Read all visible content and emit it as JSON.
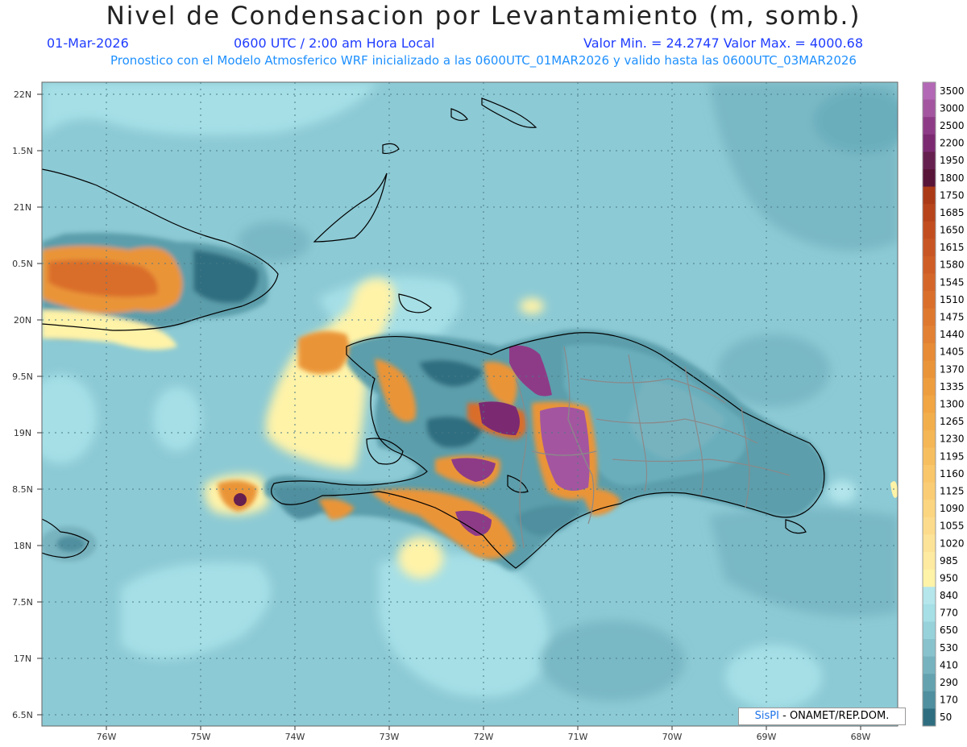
{
  "title": "Nivel de Condensacion por Levantamiento (m, somb.)",
  "subtitle": {
    "date": "01-Mar-2026",
    "time": "0600 UTC / 2:00 am Hora Local",
    "minmax": "Valor Min. = 24.2747   Valor Max. = 4000.68"
  },
  "description": "Pronostico con el Modelo Atmosferico WRF inicializado a las 0600UTC_01MAR2026 y valido hasta las  0600UTC_03MAR2026",
  "lat_labels": [
    "22N",
    "1.5N",
    "21N",
    "0.5N",
    "20N",
    "9.5N",
    "19N",
    "8.5N",
    "18N",
    "7.5N",
    "17N",
    "6.5N"
  ],
  "lon_labels": [
    "76W",
    "75W",
    "74W",
    "73W",
    "72W",
    "71W",
    "70W",
    "69W",
    "68W"
  ],
  "colorbar": [
    {
      "label": "3500",
      "color": "#b368b5"
    },
    {
      "label": "3000",
      "color": "#a3569f"
    },
    {
      "label": "2500",
      "color": "#8e3b87"
    },
    {
      "label": "2200",
      "color": "#7b2a72"
    },
    {
      "label": "1950",
      "color": "#66204f"
    },
    {
      "label": "1800",
      "color": "#581538"
    },
    {
      "label": "1750",
      "color": "#ab3a17"
    },
    {
      "label": "1685",
      "color": "#b7441b"
    },
    {
      "label": "1650",
      "color": "#c24e1f"
    },
    {
      "label": "1615",
      "color": "#c85624"
    },
    {
      "label": "1580",
      "color": "#cf5d26"
    },
    {
      "label": "1545",
      "color": "#d4662a"
    },
    {
      "label": "1510",
      "color": "#da6f2c"
    },
    {
      "label": "1475",
      "color": "#df782f"
    },
    {
      "label": "1440",
      "color": "#e28133"
    },
    {
      "label": "1405",
      "color": "#e78b36"
    },
    {
      "label": "1370",
      "color": "#ea9439"
    },
    {
      "label": "1335",
      "color": "#ee9d3e"
    },
    {
      "label": "1300",
      "color": "#f1a543"
    },
    {
      "label": "1265",
      "color": "#f3ae4c"
    },
    {
      "label": "1230",
      "color": "#f5b656"
    },
    {
      "label": "1195",
      "color": "#f7be60"
    },
    {
      "label": "1160",
      "color": "#f9c66a"
    },
    {
      "label": "1125",
      "color": "#facd75"
    },
    {
      "label": "1090",
      "color": "#fbd580"
    },
    {
      "label": "1055",
      "color": "#fcdc8c"
    },
    {
      "label": "1020",
      "color": "#fde397"
    },
    {
      "label": "985",
      "color": "#feeaa0"
    },
    {
      "label": "950",
      "color": "#fff3a8"
    },
    {
      "label": "840",
      "color": "#b4e6ec"
    },
    {
      "label": "770",
      "color": "#a6dfe6"
    },
    {
      "label": "650",
      "color": "#97d1da"
    },
    {
      "label": "530",
      "color": "#88c2cd"
    },
    {
      "label": "410",
      "color": "#77b3bf"
    },
    {
      "label": "290",
      "color": "#64a2b0"
    },
    {
      "label": "170",
      "color": "#4f8f9f"
    },
    {
      "label": "50",
      "color": "#2f6e80"
    }
  ],
  "credit": {
    "brand": "SisPI",
    "text": " - ONAMET/REP.DOM."
  },
  "colors": {
    "ocean": "#8ccad5",
    "ocean_light": "#a9e2e8",
    "ocean_dark": "#6aaebc",
    "land_teal": "#5b9eab",
    "orange": "#ea9439",
    "yellow": "#fff3a8",
    "purple": "#9d4f9b"
  }
}
